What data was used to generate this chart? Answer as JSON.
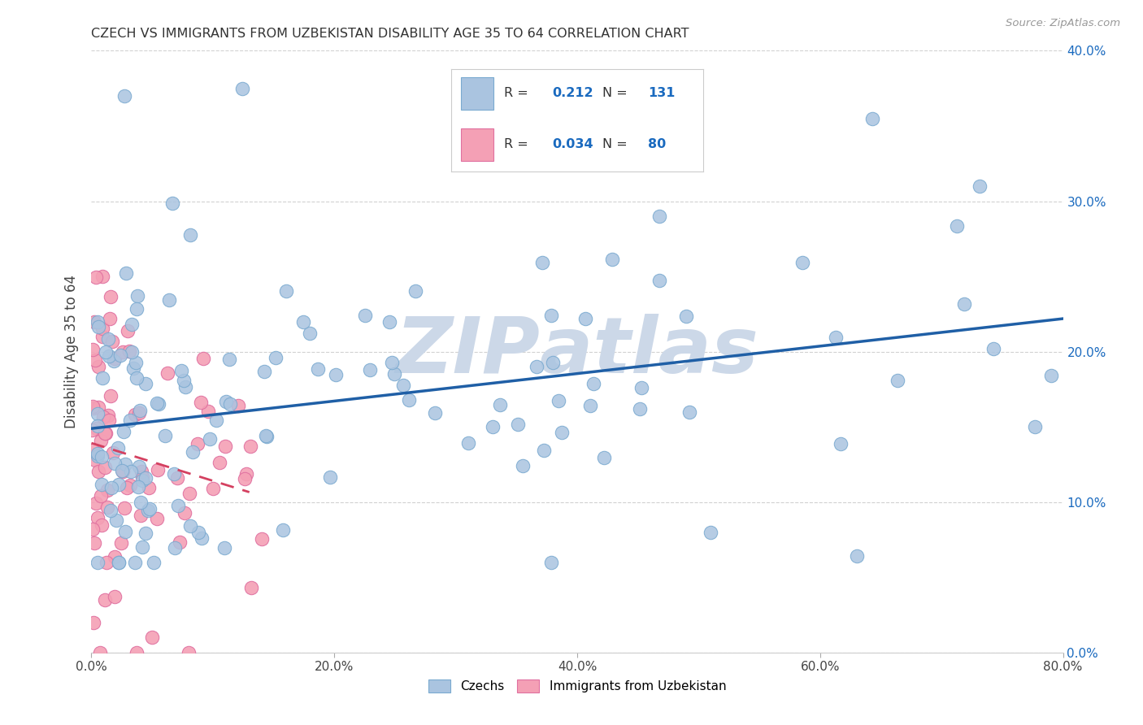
{
  "title": "CZECH VS IMMIGRANTS FROM UZBEKISTAN DISABILITY AGE 35 TO 64 CORRELATION CHART",
  "source": "Source: ZipAtlas.com",
  "ylabel": "Disability Age 35 to 64",
  "xlim": [
    0.0,
    0.8
  ],
  "ylim": [
    0.0,
    0.4
  ],
  "czech_R": 0.212,
  "czech_N": 131,
  "uzbek_R": 0.034,
  "uzbek_N": 80,
  "czech_color": "#aac4e0",
  "czech_edge_color": "#7aaad0",
  "czech_line_color": "#1f5fa6",
  "uzbek_color": "#f4a0b5",
  "uzbek_edge_color": "#e070a0",
  "uzbek_line_color": "#d44060",
  "background_color": "#ffffff",
  "watermark_color": "#ccd8e8",
  "legend_R_color": "#1a6abf",
  "grid_color": "#cccccc",
  "right_tick_color": "#1a6abf",
  "xticks": [
    0.0,
    0.2,
    0.4,
    0.6,
    0.8
  ],
  "yticks": [
    0.0,
    0.1,
    0.2,
    0.3,
    0.4
  ]
}
